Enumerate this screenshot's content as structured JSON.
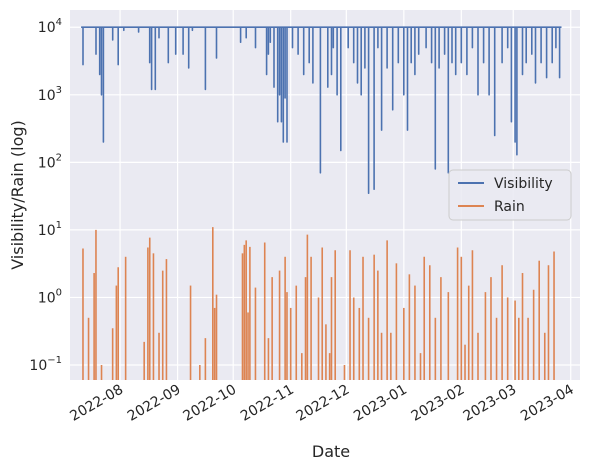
{
  "chart_data": {
    "type": "line",
    "title": "",
    "xlabel": "Date",
    "ylabel": "Visibility/Rain (log)",
    "y_scale": "log",
    "ylim": [
      0.06,
      18000
    ],
    "xlim": [
      "2022-07-05",
      "2023-04-06"
    ],
    "x_tick_labels": [
      "2022-08",
      "2022-09",
      "2022-10",
      "2022-11",
      "2022-12",
      "2023-01",
      "2023-02",
      "2023-03",
      "2023-04"
    ],
    "x_tick_dates": [
      "2022-08-01",
      "2022-09-01",
      "2022-10-01",
      "2022-11-01",
      "2022-12-01",
      "2023-01-01",
      "2023-02-01",
      "2023-03-01",
      "2023-04-01"
    ],
    "y_tick_labels": [
      {
        "base": "10",
        "exp": "−1",
        "value": 0.1
      },
      {
        "base": "10",
        "exp": "0",
        "value": 1
      },
      {
        "base": "10",
        "exp": "1",
        "value": 10
      },
      {
        "base": "10",
        "exp": "2",
        "value": 100
      },
      {
        "base": "10",
        "exp": "3",
        "value": 1000
      },
      {
        "base": "10",
        "exp": "4",
        "value": 10000
      }
    ],
    "grid": true,
    "background": "#EAEAF2",
    "legend_position": "center-right",
    "series": [
      {
        "name": "Visibility",
        "color": "#4C72B0",
        "baseline": 10000,
        "dips": [
          [
            "2022-07-12",
            2800
          ],
          [
            "2022-07-19",
            4000
          ],
          [
            "2022-07-21",
            2000
          ],
          [
            "2022-07-22",
            1000
          ],
          [
            "2022-07-23",
            200
          ],
          [
            "2022-07-28",
            6500
          ],
          [
            "2022-07-31",
            2800
          ],
          [
            "2022-08-03",
            9000
          ],
          [
            "2022-08-11",
            8500
          ],
          [
            "2022-08-17",
            3000
          ],
          [
            "2022-08-18",
            1200
          ],
          [
            "2022-08-20",
            1200
          ],
          [
            "2022-08-22",
            7000
          ],
          [
            "2022-08-27",
            3000
          ],
          [
            "2022-08-31",
            4000
          ],
          [
            "2022-09-04",
            4000
          ],
          [
            "2022-09-07",
            2500
          ],
          [
            "2022-09-09",
            9000
          ],
          [
            "2022-09-16",
            1200
          ],
          [
            "2022-09-22",
            3500
          ],
          [
            "2022-10-05",
            6000
          ],
          [
            "2022-10-08",
            7000
          ],
          [
            "2022-10-13",
            5000
          ],
          [
            "2022-10-19",
            2000
          ],
          [
            "2022-10-20",
            4000
          ],
          [
            "2022-10-21",
            6000
          ],
          [
            "2022-10-23",
            1300
          ],
          [
            "2022-10-25",
            400
          ],
          [
            "2022-10-26",
            1000
          ],
          [
            "2022-10-27",
            400
          ],
          [
            "2022-10-28",
            200
          ],
          [
            "2022-10-29",
            900
          ],
          [
            "2022-10-30",
            200
          ],
          [
            "2022-11-02",
            5000
          ],
          [
            "2022-11-05",
            4000
          ],
          [
            "2022-11-08",
            2000
          ],
          [
            "2022-11-11",
            3000
          ],
          [
            "2022-11-13",
            1500
          ],
          [
            "2022-11-17",
            70
          ],
          [
            "2022-11-21",
            1300
          ],
          [
            "2022-11-23",
            2000
          ],
          [
            "2022-11-24",
            5000
          ],
          [
            "2022-11-26",
            1000
          ],
          [
            "2022-11-28",
            150
          ],
          [
            "2022-12-02",
            5000
          ],
          [
            "2022-12-05",
            3000
          ],
          [
            "2022-12-07",
            1500
          ],
          [
            "2022-12-09",
            1000
          ],
          [
            "2022-12-11",
            2500
          ],
          [
            "2022-12-13",
            35
          ],
          [
            "2022-12-16",
            40
          ],
          [
            "2022-12-18",
            5000
          ],
          [
            "2022-12-20",
            300
          ],
          [
            "2022-12-23",
            2500
          ],
          [
            "2022-12-26",
            600
          ],
          [
            "2022-12-29",
            3000
          ],
          [
            "2023-01-01",
            1000
          ],
          [
            "2023-01-03",
            300
          ],
          [
            "2023-01-05",
            3000
          ],
          [
            "2023-01-07",
            2000
          ],
          [
            "2023-01-09",
            4000
          ],
          [
            "2023-01-13",
            5000
          ],
          [
            "2023-01-16",
            3000
          ],
          [
            "2023-01-18",
            80
          ],
          [
            "2023-01-20",
            2500
          ],
          [
            "2023-01-23",
            4000
          ],
          [
            "2023-01-25",
            70
          ],
          [
            "2023-01-27",
            3000
          ],
          [
            "2023-01-29",
            2000
          ],
          [
            "2023-02-01",
            3000
          ],
          [
            "2023-02-04",
            2000
          ],
          [
            "2023-02-07",
            5000
          ],
          [
            "2023-02-10",
            1000
          ],
          [
            "2023-02-13",
            3000
          ],
          [
            "2023-02-16",
            1000
          ],
          [
            "2023-02-19",
            250
          ],
          [
            "2023-02-23",
            3000
          ],
          [
            "2023-02-26",
            5000
          ],
          [
            "2023-02-28",
            400
          ],
          [
            "2023-03-02",
            200
          ],
          [
            "2023-03-03",
            130
          ],
          [
            "2023-03-06",
            2000
          ],
          [
            "2023-03-08",
            3000
          ],
          [
            "2023-03-11",
            4000
          ],
          [
            "2023-03-13",
            1500
          ],
          [
            "2023-03-16",
            3000
          ],
          [
            "2023-03-19",
            1800
          ],
          [
            "2023-03-22",
            3000
          ],
          [
            "2023-03-24",
            5000
          ],
          [
            "2023-03-26",
            1800
          ]
        ]
      },
      {
        "name": "Rain",
        "color": "#DD8452",
        "spikes": [
          [
            "2022-07-12",
            5.3
          ],
          [
            "2022-07-15",
            0.5
          ],
          [
            "2022-07-18",
            2.3
          ],
          [
            "2022-07-19",
            10
          ],
          [
            "2022-07-22",
            0.1
          ],
          [
            "2022-07-28",
            0.35
          ],
          [
            "2022-07-30",
            1.5
          ],
          [
            "2022-07-31",
            2.8
          ],
          [
            "2022-08-04",
            4
          ],
          [
            "2022-08-14",
            0.22
          ],
          [
            "2022-08-16",
            5.5
          ],
          [
            "2022-08-17",
            7.7
          ],
          [
            "2022-08-19",
            4.5
          ],
          [
            "2022-08-22",
            0.3
          ],
          [
            "2022-08-24",
            2.5
          ],
          [
            "2022-08-26",
            3.7
          ],
          [
            "2022-09-08",
            1.5
          ],
          [
            "2022-09-13",
            0.1
          ],
          [
            "2022-09-16",
            0.25
          ],
          [
            "2022-09-20",
            11
          ],
          [
            "2022-09-21",
            0.7
          ],
          [
            "2022-09-22",
            1.1
          ],
          [
            "2022-10-06",
            4.5
          ],
          [
            "2022-10-07",
            6
          ],
          [
            "2022-10-08",
            7
          ],
          [
            "2022-10-09",
            0.6
          ],
          [
            "2022-10-10",
            5.6
          ],
          [
            "2022-10-13",
            1.4
          ],
          [
            "2022-10-18",
            6.5
          ],
          [
            "2022-10-20",
            0.25
          ],
          [
            "2022-10-22",
            2.0
          ],
          [
            "2022-10-26",
            2.5
          ],
          [
            "2022-10-29",
            4.0
          ],
          [
            "2022-10-30",
            1.2
          ],
          [
            "2022-11-01",
            0.7
          ],
          [
            "2022-11-04",
            1.5
          ],
          [
            "2022-11-07",
            0.15
          ],
          [
            "2022-11-09",
            2.0
          ],
          [
            "2022-11-10",
            8.5
          ],
          [
            "2022-11-12",
            4.0
          ],
          [
            "2022-11-16",
            1.0
          ],
          [
            "2022-11-18",
            5.5
          ],
          [
            "2022-11-20",
            0.4
          ],
          [
            "2022-11-22",
            0.15
          ],
          [
            "2022-11-23",
            2.0
          ],
          [
            "2022-11-25",
            5.0
          ],
          [
            "2022-11-30",
            0.1
          ],
          [
            "2022-12-03",
            5.0
          ],
          [
            "2022-12-05",
            1.0
          ],
          [
            "2022-12-08",
            0.7
          ],
          [
            "2022-12-10",
            4.0
          ],
          [
            "2022-12-13",
            0.5
          ],
          [
            "2022-12-16",
            4.3
          ],
          [
            "2022-12-18",
            2.5
          ],
          [
            "2022-12-20",
            0.3
          ],
          [
            "2022-12-23",
            7.0
          ],
          [
            "2022-12-25",
            0.3
          ],
          [
            "2022-12-28",
            3.2
          ],
          [
            "2023-01-01",
            0.7
          ],
          [
            "2023-01-04",
            2.2
          ],
          [
            "2023-01-07",
            1.5
          ],
          [
            "2023-01-10",
            0.15
          ],
          [
            "2023-01-12",
            4.0
          ],
          [
            "2023-01-15",
            3.0
          ],
          [
            "2023-01-18",
            0.5
          ],
          [
            "2023-01-21",
            2.0
          ],
          [
            "2023-01-25",
            1.2
          ],
          [
            "2023-01-30",
            5.5
          ],
          [
            "2023-02-01",
            4.0
          ],
          [
            "2023-02-03",
            0.2
          ],
          [
            "2023-02-05",
            1.5
          ],
          [
            "2023-02-07",
            5.0
          ],
          [
            "2023-02-10",
            0.3
          ],
          [
            "2023-02-14",
            1.2
          ],
          [
            "2023-02-17",
            2.0
          ],
          [
            "2023-02-20",
            0.5
          ],
          [
            "2023-02-23",
            3.0
          ],
          [
            "2023-02-26",
            1.0
          ],
          [
            "2023-03-02",
            0.9
          ],
          [
            "2023-03-04",
            0.5
          ],
          [
            "2023-03-06",
            2.3
          ],
          [
            "2023-03-09",
            0.5
          ],
          [
            "2023-03-12",
            1.3
          ],
          [
            "2023-03-15",
            3.5
          ],
          [
            "2023-03-18",
            0.3
          ],
          [
            "2023-03-20",
            3.0
          ],
          [
            "2023-03-23",
            4.8
          ]
        ]
      }
    ]
  }
}
